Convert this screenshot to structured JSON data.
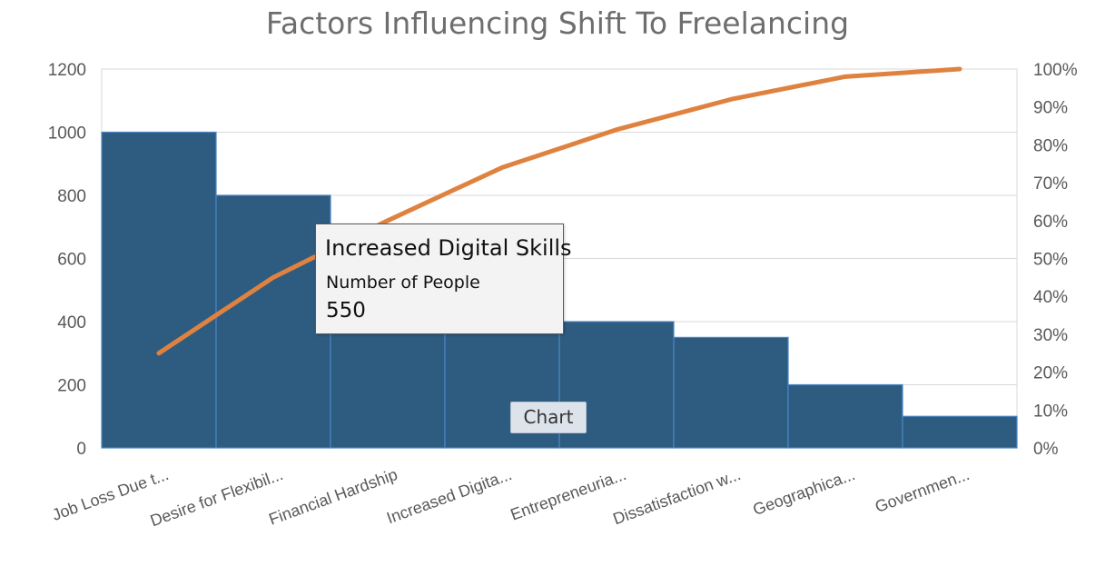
{
  "chart_data": {
    "type": "bar",
    "title": "Factors Influencing Shift To Freelancing",
    "categories": [
      "Job Loss Due t...",
      "Desire for Flexibil...",
      "Financial Hardship",
      "Increased Digita...",
      "Entrepreneuria...",
      "Dissatisfaction w...",
      "Geographica...",
      "Governmen..."
    ],
    "series": [
      {
        "name": "Number of People",
        "type": "bar",
        "values": [
          1000,
          800,
          550,
          550,
          400,
          350,
          200,
          100
        ],
        "color": "#2e5c80"
      },
      {
        "type": "line",
        "axis": "secondary",
        "values": [
          25,
          45,
          60,
          74,
          84,
          92,
          98,
          100
        ],
        "color": "#e0823f"
      }
    ],
    "y_ticks": [
      "0",
      "200",
      "400",
      "600",
      "800",
      "1000",
      "1200"
    ],
    "y2_ticks": [
      "0%",
      "10%",
      "20%",
      "30%",
      "40%",
      "50%",
      "60%",
      "70%",
      "80%",
      "90%",
      "100%"
    ],
    "ylim": [
      0,
      1200
    ],
    "y2lim": [
      0,
      100
    ],
    "grid": true
  },
  "tooltip": {
    "title": "Increased Digital Skills",
    "series": "Number of People",
    "value": "550"
  },
  "badge": {
    "label": "Chart"
  }
}
